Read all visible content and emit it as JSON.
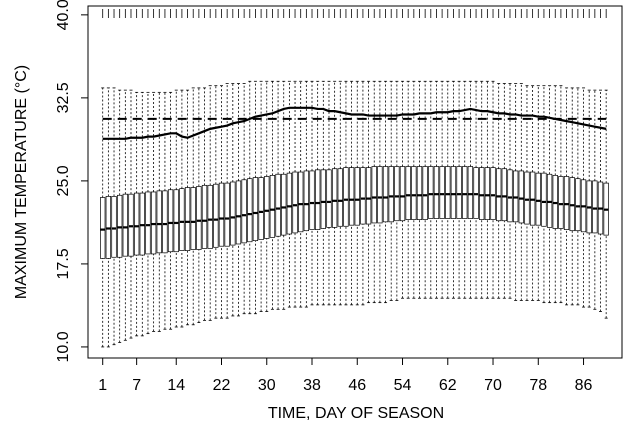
{
  "chart_data": {
    "type": "boxplot",
    "x_label": "TIME, DAY OF SEASON",
    "y_label": "MAXIMUM TEMPERATURE (°C)",
    "x": [
      1,
      2,
      3,
      4,
      5,
      6,
      7,
      8,
      9,
      10,
      11,
      12,
      13,
      14,
      15,
      16,
      17,
      18,
      19,
      20,
      21,
      22,
      23,
      24,
      25,
      26,
      27,
      28,
      29,
      30,
      31,
      32,
      33,
      34,
      35,
      36,
      37,
      38,
      39,
      40,
      41,
      42,
      43,
      44,
      45,
      46,
      47,
      48,
      49,
      50,
      51,
      52,
      53,
      54,
      55,
      56,
      57,
      58,
      59,
      60,
      61,
      62,
      63,
      64,
      65,
      66,
      67,
      68,
      69,
      70,
      71,
      72,
      73,
      74,
      75,
      76,
      77,
      78,
      79,
      80,
      81,
      82,
      83,
      84,
      85,
      86,
      87,
      88,
      89,
      90
    ],
    "xlim": [
      -1.6,
      92.8
    ],
    "xticks": [
      1,
      7,
      14,
      22,
      30,
      38,
      46,
      54,
      62,
      70,
      78,
      86
    ],
    "ylim": [
      9.0,
      40.8
    ],
    "yticks": [
      {
        "value": 10,
        "label": "10.0"
      },
      17.5,
      {
        "value": 25,
        "label": "25.0"
      },
      32.5,
      {
        "value": 40,
        "label": "40.0"
      }
    ],
    "boxes": {
      "whisker_low": [
        10.0,
        10.0,
        10.2,
        10.4,
        10.6,
        10.8,
        11.0,
        11.0,
        11.2,
        11.4,
        11.4,
        11.6,
        11.6,
        11.8,
        11.8,
        12.0,
        12.0,
        12.2,
        12.4,
        12.4,
        12.6,
        12.6,
        12.6,
        12.8,
        12.8,
        13.0,
        13.0,
        13.0,
        13.2,
        13.2,
        13.4,
        13.4,
        13.4,
        13.6,
        13.6,
        13.6,
        13.6,
        13.8,
        13.8,
        13.8,
        13.8,
        13.8,
        13.8,
        13.8,
        13.8,
        13.8,
        13.8,
        14.0,
        14.0,
        14.0,
        14.0,
        14.2,
        14.2,
        14.4,
        14.4,
        14.4,
        14.4,
        14.4,
        14.4,
        14.4,
        14.4,
        14.4,
        14.4,
        14.4,
        14.4,
        14.4,
        14.4,
        14.4,
        14.4,
        14.4,
        14.4,
        14.4,
        14.4,
        14.2,
        14.2,
        14.2,
        14.2,
        14.2,
        14.0,
        14.0,
        14.0,
        14.0,
        13.8,
        13.8,
        13.8,
        13.6,
        13.6,
        13.4,
        13.2,
        12.6
      ],
      "q1": [
        18.0,
        18.0,
        18.1,
        18.1,
        18.2,
        18.2,
        18.3,
        18.3,
        18.4,
        18.4,
        18.5,
        18.5,
        18.6,
        18.6,
        18.7,
        18.7,
        18.8,
        18.8,
        18.9,
        18.9,
        19.0,
        19.1,
        19.1,
        19.2,
        19.3,
        19.4,
        19.5,
        19.6,
        19.7,
        19.8,
        19.9,
        20.0,
        20.1,
        20.2,
        20.3,
        20.4,
        20.5,
        20.6,
        20.6,
        20.7,
        20.8,
        20.8,
        20.9,
        20.9,
        21.0,
        21.0,
        21.1,
        21.1,
        21.2,
        21.2,
        21.3,
        21.3,
        21.4,
        21.4,
        21.5,
        21.5,
        21.5,
        21.5,
        21.6,
        21.6,
        21.6,
        21.6,
        21.6,
        21.6,
        21.6,
        21.6,
        21.6,
        21.5,
        21.5,
        21.5,
        21.4,
        21.4,
        21.3,
        21.3,
        21.2,
        21.1,
        21.0,
        21.0,
        20.9,
        20.8,
        20.7,
        20.7,
        20.6,
        20.5,
        20.5,
        20.4,
        20.3,
        20.3,
        20.2,
        20.1
      ],
      "median": [
        20.6,
        20.7,
        20.7,
        20.8,
        20.8,
        20.9,
        20.9,
        21.0,
        21.0,
        21.1,
        21.1,
        21.1,
        21.2,
        21.2,
        21.3,
        21.3,
        21.3,
        21.4,
        21.4,
        21.5,
        21.5,
        21.6,
        21.6,
        21.7,
        21.8,
        21.9,
        22.0,
        22.1,
        22.2,
        22.3,
        22.4,
        22.5,
        22.6,
        22.7,
        22.8,
        22.9,
        22.9,
        23.0,
        23.0,
        23.1,
        23.1,
        23.2,
        23.2,
        23.3,
        23.3,
        23.3,
        23.4,
        23.4,
        23.5,
        23.5,
        23.5,
        23.6,
        23.6,
        23.6,
        23.7,
        23.7,
        23.7,
        23.7,
        23.8,
        23.8,
        23.8,
        23.8,
        23.8,
        23.8,
        23.8,
        23.8,
        23.8,
        23.7,
        23.7,
        23.7,
        23.6,
        23.6,
        23.5,
        23.5,
        23.4,
        23.3,
        23.3,
        23.2,
        23.1,
        23.1,
        23.0,
        22.9,
        22.9,
        22.8,
        22.7,
        22.7,
        22.6,
        22.5,
        22.5,
        22.4
      ],
      "q3": [
        23.5,
        23.6,
        23.6,
        23.7,
        23.8,
        23.8,
        23.9,
        23.9,
        24.0,
        24.0,
        24.1,
        24.1,
        24.2,
        24.2,
        24.3,
        24.4,
        24.4,
        24.5,
        24.6,
        24.6,
        24.7,
        24.8,
        24.8,
        24.9,
        25.0,
        25.1,
        25.2,
        25.3,
        25.3,
        25.4,
        25.5,
        25.6,
        25.6,
        25.7,
        25.8,
        25.8,
        25.9,
        25.9,
        26.0,
        26.0,
        26.0,
        26.1,
        26.1,
        26.2,
        26.2,
        26.2,
        26.2,
        26.2,
        26.3,
        26.3,
        26.3,
        26.3,
        26.3,
        26.3,
        26.3,
        26.3,
        26.3,
        26.3,
        26.3,
        26.3,
        26.3,
        26.3,
        26.3,
        26.3,
        26.3,
        26.3,
        26.2,
        26.2,
        26.2,
        26.2,
        26.1,
        26.1,
        26.0,
        25.9,
        25.9,
        25.8,
        25.8,
        25.7,
        25.7,
        25.6,
        25.5,
        25.4,
        25.4,
        25.3,
        25.2,
        25.1,
        25.0,
        25.0,
        24.9,
        24.8
      ],
      "whisker_high": [
        33.4,
        33.4,
        33.4,
        33.2,
        33.2,
        33.2,
        33.0,
        33.0,
        33.0,
        33.0,
        33.0,
        33.0,
        33.0,
        33.2,
        33.2,
        33.2,
        33.4,
        33.4,
        33.4,
        33.6,
        33.6,
        33.6,
        33.8,
        33.8,
        33.8,
        33.8,
        34.0,
        34.0,
        34.0,
        34.0,
        34.0,
        34.0,
        34.0,
        34.0,
        34.0,
        34.0,
        34.0,
        34.0,
        34.0,
        34.0,
        34.0,
        34.0,
        34.0,
        34.0,
        34.0,
        34.0,
        34.0,
        34.0,
        34.0,
        34.0,
        34.0,
        34.0,
        34.0,
        34.0,
        34.0,
        34.0,
        34.0,
        34.0,
        34.0,
        34.0,
        34.0,
        34.0,
        34.0,
        34.0,
        34.0,
        34.0,
        34.0,
        34.0,
        34.0,
        34.0,
        33.8,
        33.8,
        33.8,
        33.8,
        33.8,
        33.6,
        33.6,
        33.6,
        33.6,
        33.6,
        33.6,
        33.6,
        33.4,
        33.4,
        33.4,
        33.4,
        33.2,
        33.2,
        33.2,
        33.2
      ]
    },
    "lines": [
      {
        "style": "solid",
        "color": "#000000",
        "values": [
          28.8,
          28.8,
          28.8,
          28.8,
          28.8,
          28.9,
          28.9,
          28.9,
          29.0,
          29.0,
          29.1,
          29.2,
          29.3,
          29.3,
          29.0,
          28.9,
          29.1,
          29.3,
          29.5,
          29.7,
          29.8,
          29.9,
          30.0,
          30.2,
          30.3,
          30.4,
          30.6,
          30.8,
          30.9,
          31.0,
          31.1,
          31.3,
          31.5,
          31.6,
          31.6,
          31.6,
          31.6,
          31.6,
          31.5,
          31.5,
          31.3,
          31.3,
          31.2,
          31.1,
          31.0,
          31.0,
          31.0,
          30.9,
          30.9,
          30.9,
          30.9,
          30.9,
          30.9,
          31.0,
          31.0,
          31.0,
          31.1,
          31.1,
          31.1,
          31.2,
          31.2,
          31.2,
          31.3,
          31.3,
          31.4,
          31.5,
          31.4,
          31.3,
          31.3,
          31.2,
          31.1,
          31.1,
          31.0,
          31.0,
          30.9,
          30.9,
          30.9,
          30.8,
          30.8,
          30.7,
          30.6,
          30.5,
          30.4,
          30.3,
          30.2,
          30.1,
          30.0,
          29.9,
          29.8,
          29.7
        ]
      }
    ],
    "hline": {
      "value": 30.6,
      "style": "dashed",
      "color": "#000000"
    }
  }
}
